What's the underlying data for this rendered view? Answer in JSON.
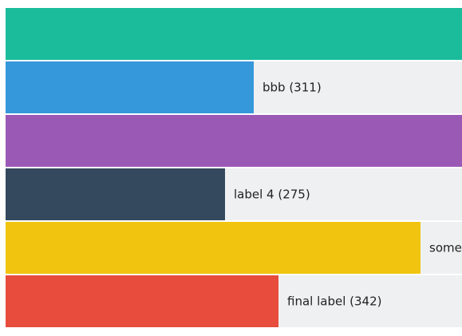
{
  "chart_data": {
    "type": "bar",
    "orientation": "horizontal",
    "series": [
      {
        "label": "",
        "value": null,
        "color": "#1abc9c"
      },
      {
        "label": "bbb (311)",
        "value": 311,
        "color": "#3498db"
      },
      {
        "label": "",
        "value": null,
        "color": "#9b59b6"
      },
      {
        "label": "label 4 (275)",
        "value": 275,
        "color": "#34495e"
      },
      {
        "label": "some",
        "value": null,
        "color": "#f1c40f"
      },
      {
        "label": "final label (342)",
        "value": 342,
        "color": "#e74c3c"
      }
    ],
    "track_color": "#eff0f1"
  }
}
